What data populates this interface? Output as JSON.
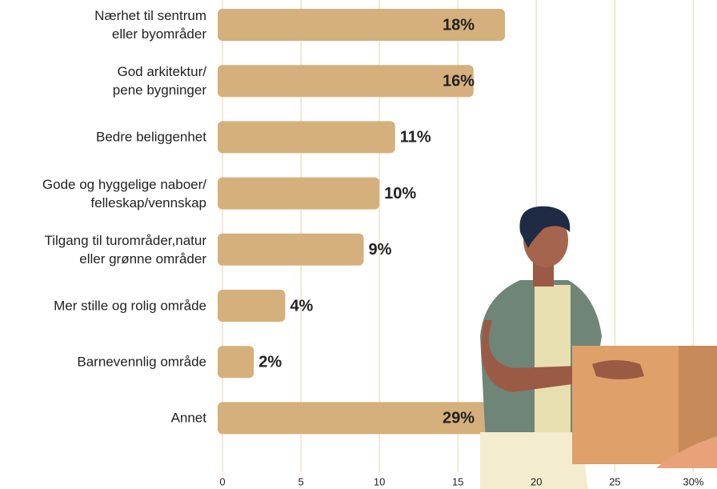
{
  "chart_data": {
    "type": "bar",
    "orientation": "horizontal",
    "categories": [
      "Nærhet til sentrum\neller byområder",
      "God arkitektur/\npene bygninger",
      "Bedre beliggenhet",
      "Gode og hyggelige naboer/\nfelleskap/vennskap",
      "Tilgang til turområder,natur\neller grønne områder",
      "Mer stille og rolig område",
      "Barnevennlig område",
      "Annet"
    ],
    "values": [
      18,
      16,
      11,
      10,
      9,
      4,
      2,
      29
    ],
    "value_labels": [
      "18%",
      "16%",
      "11%",
      "10%",
      "9%",
      "4%",
      "2%",
      "29%"
    ],
    "color": "#d5b07c",
    "xlim": [
      0,
      31
    ],
    "xticks": [
      0,
      5,
      10,
      15,
      20,
      25,
      {
        "value": 30,
        "label": "30%"
      }
    ],
    "grid": true
  }
}
